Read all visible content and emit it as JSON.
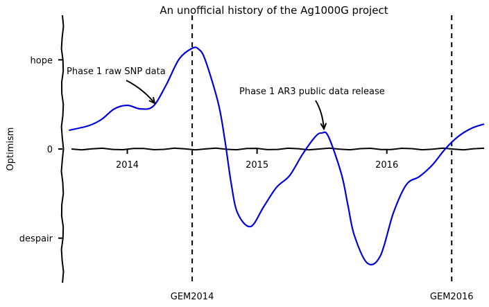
{
  "chart_data": {
    "type": "line",
    "title": "An unofficial history of the Ag1000G project",
    "xlabel": "",
    "ylabel": "Optimism",
    "xlim": [
      2013.5,
      2016.75
    ],
    "ylim": [
      -1.5,
      1.5
    ],
    "x_ticks": [
      {
        "value": 2014,
        "label": "2014"
      },
      {
        "value": 2015,
        "label": "2015"
      },
      {
        "value": 2016,
        "label": "2016"
      }
    ],
    "y_ticks": [
      {
        "value": 1,
        "label": "hope"
      },
      {
        "value": 0,
        "label": "0"
      },
      {
        "value": -1,
        "label": "despair"
      }
    ],
    "baseline": {
      "y": 0
    },
    "series": [
      {
        "color": "#0000dd",
        "x": [
          2013.55,
          2013.7,
          2013.8,
          2013.9,
          2014.0,
          2014.1,
          2014.2,
          2014.3,
          2014.4,
          2014.5,
          2014.55,
          2014.6,
          2014.7,
          2014.75,
          2014.8,
          2014.85,
          2014.95,
          2015.05,
          2015.15,
          2015.25,
          2015.35,
          2015.45,
          2015.5,
          2015.55,
          2015.65,
          2015.7,
          2015.75,
          2015.85,
          2015.95,
          2016.05,
          2016.15,
          2016.25,
          2016.35,
          2016.45,
          2016.55,
          2016.65,
          2016.75
        ],
        "y": [
          0.21,
          0.26,
          0.33,
          0.45,
          0.49,
          0.45,
          0.48,
          0.72,
          1.01,
          1.13,
          1.12,
          1.0,
          0.52,
          0.12,
          -0.38,
          -0.72,
          -0.87,
          -0.65,
          -0.43,
          -0.3,
          -0.06,
          0.14,
          0.18,
          0.14,
          -0.28,
          -0.63,
          -0.97,
          -1.28,
          -1.2,
          -0.72,
          -0.4,
          -0.31,
          -0.18,
          0.0,
          0.14,
          0.23,
          0.28
        ]
      }
    ],
    "vlines": [
      {
        "x": 2014.5,
        "label": "GEM2014"
      },
      {
        "x": 2016.5,
        "label": "GEM2016"
      }
    ],
    "annotations": [
      {
        "text": "Phase 1 raw SNP data",
        "x": 2014.15,
        "y": 0.5
      },
      {
        "text": "Phase 1 AR3 public data release",
        "x": 2015.5,
        "y": 0.22
      }
    ],
    "grid": false,
    "style": "xkcd"
  }
}
